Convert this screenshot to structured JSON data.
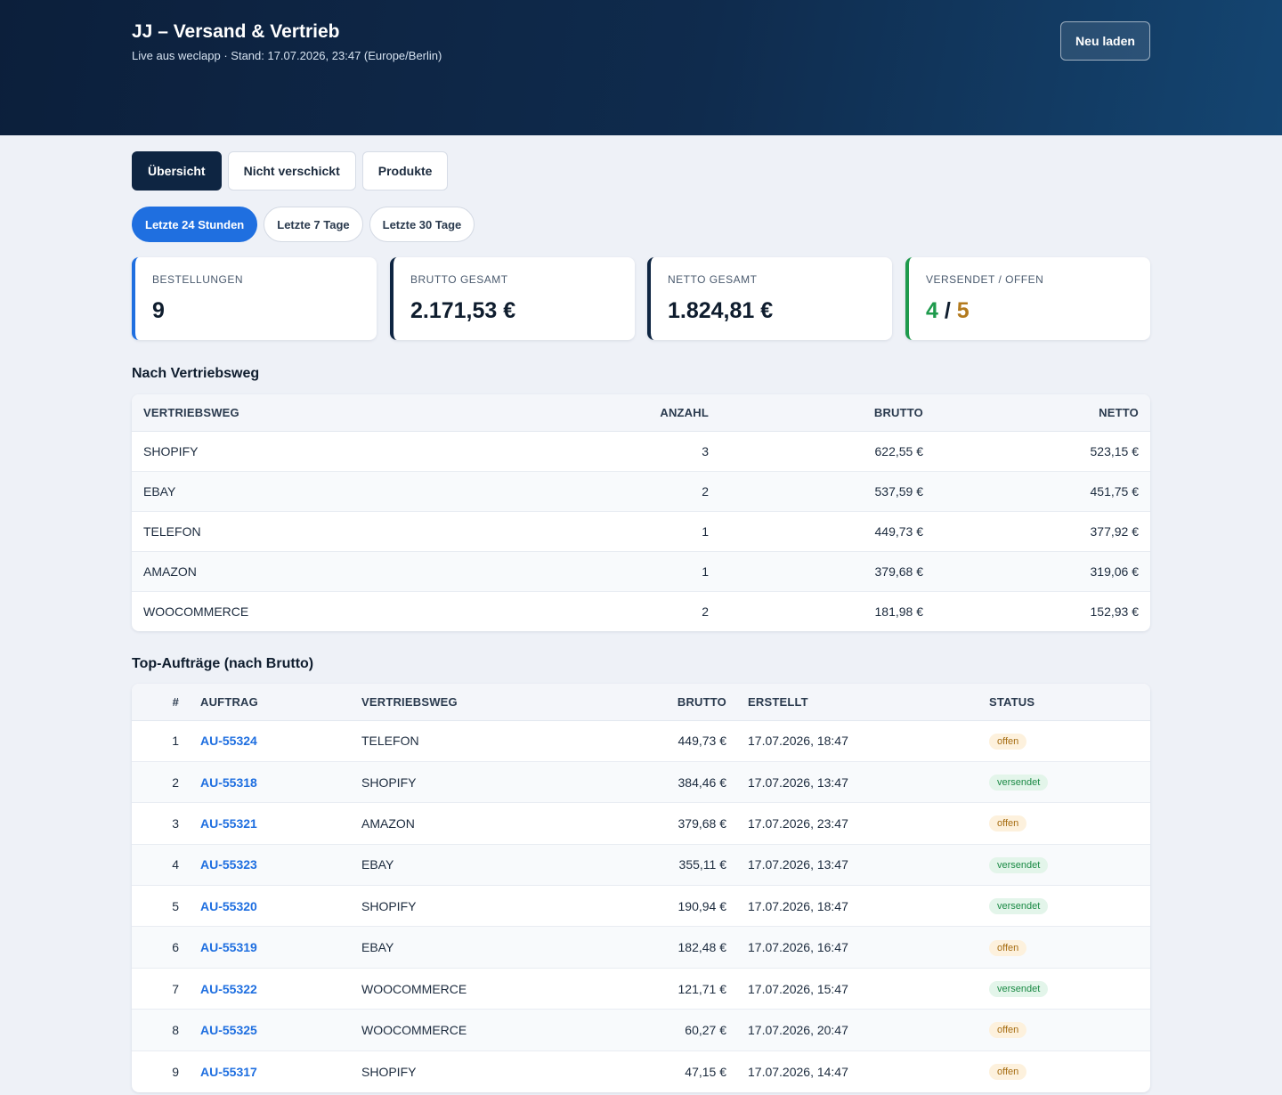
{
  "header": {
    "title": "JJ – Versand & Vertrieb",
    "subtitle": "Live aus weclapp · Stand: 17.07.2026, 23:47 (Europe/Berlin)",
    "reload_label": "Neu laden"
  },
  "tabs": [
    {
      "label": "Übersicht",
      "active": true
    },
    {
      "label": "Nicht verschickt",
      "active": false
    },
    {
      "label": "Produkte",
      "active": false
    }
  ],
  "ranges": [
    {
      "label": "Letzte 24 Stunden",
      "active": true
    },
    {
      "label": "Letzte 7 Tage",
      "active": false
    },
    {
      "label": "Letzte 30 Tage",
      "active": false
    }
  ],
  "kpis": {
    "orders": {
      "label": "BESTELLUNGEN",
      "value": "9"
    },
    "gross": {
      "label": "BRUTTO GESAMT",
      "value": "2.171,53 €"
    },
    "net": {
      "label": "NETTO GESAMT",
      "value": "1.824,81 €"
    },
    "shipped": {
      "label": "VERSENDET / OFFEN",
      "shipped": "4",
      "separator": "/",
      "open": "5"
    }
  },
  "colors": {
    "accent": "#1f6fe0",
    "navy": "#0e2542",
    "green": "#1e9a4c",
    "amber": "#b37a1e"
  },
  "channels": {
    "title": "Nach Vertriebsweg",
    "columns": [
      "VERTRIEBSWEG",
      "ANZAHL",
      "BRUTTO",
      "NETTO"
    ],
    "rows": [
      [
        "SHOPIFY",
        "3",
        "622,55 €",
        "523,15 €"
      ],
      [
        "EBAY",
        "2",
        "537,59 €",
        "451,75 €"
      ],
      [
        "TELEFON",
        "1",
        "449,73 €",
        "377,92 €"
      ],
      [
        "AMAZON",
        "1",
        "379,68 €",
        "319,06 €"
      ],
      [
        "WOOCOMMERCE",
        "2",
        "181,98 €",
        "152,93 €"
      ]
    ]
  },
  "top_orders": {
    "title": "Top-Aufträge (nach Brutto)",
    "columns": [
      "#",
      "AUFTRAG",
      "VERTRIEBSWEG",
      "BRUTTO",
      "ERSTELLT",
      "STATUS"
    ],
    "rows": [
      [
        "1",
        "AU-55324",
        "TELEFON",
        "449,73 €",
        "17.07.2026, 18:47",
        "offen"
      ],
      [
        "2",
        "AU-55318",
        "SHOPIFY",
        "384,46 €",
        "17.07.2026, 13:47",
        "versendet"
      ],
      [
        "3",
        "AU-55321",
        "AMAZON",
        "379,68 €",
        "17.07.2026, 23:47",
        "offen"
      ],
      [
        "4",
        "AU-55323",
        "EBAY",
        "355,11 €",
        "17.07.2026, 13:47",
        "versendet"
      ],
      [
        "5",
        "AU-55320",
        "SHOPIFY",
        "190,94 €",
        "17.07.2026, 18:47",
        "versendet"
      ],
      [
        "6",
        "AU-55319",
        "EBAY",
        "182,48 €",
        "17.07.2026, 16:47",
        "offen"
      ],
      [
        "7",
        "AU-55322",
        "WOOCOMMERCE",
        "121,71 €",
        "17.07.2026, 15:47",
        "versendet"
      ],
      [
        "8",
        "AU-55325",
        "WOOCOMMERCE",
        "60,27 €",
        "17.07.2026, 20:47",
        "offen"
      ],
      [
        "9",
        "AU-55317",
        "SHOPIFY",
        "47,15 €",
        "17.07.2026, 14:47",
        "offen"
      ]
    ]
  }
}
